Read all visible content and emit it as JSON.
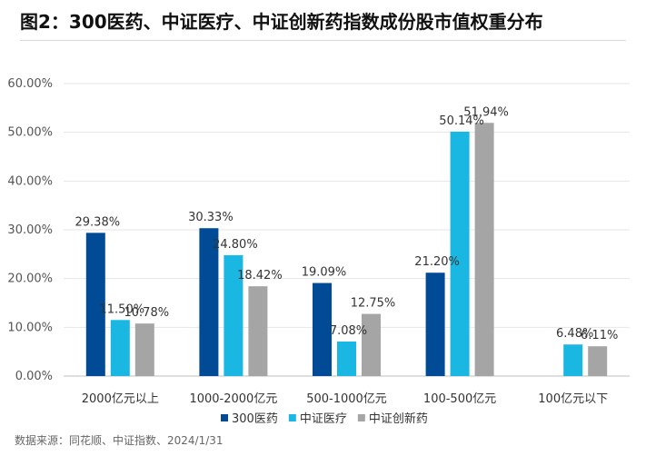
{
  "header": {
    "title": "图2：300医药、中证医疗、中证创新药指数成份股市值权重分布"
  },
  "footer": {
    "source": "数据来源：同花顺、中证指数、2024/1/31"
  },
  "chart_data": {
    "type": "bar",
    "title": "图2：300医药、中证医疗、中证创新药指数成份股市值权重分布",
    "xlabel": "",
    "ylabel": "",
    "categories": [
      "2000亿元以上",
      "1000-2000亿元",
      "500-1000亿元",
      "100-500亿元",
      "100亿元以下"
    ],
    "series": [
      {
        "name": "300医药",
        "color": "#004a96",
        "values": [
          29.38,
          30.33,
          19.09,
          21.2,
          null
        ],
        "labels": [
          "29.38%",
          "30.33%",
          "19.09%",
          "21.20%",
          ""
        ]
      },
      {
        "name": "中证医疗",
        "color": "#1ab7e3",
        "values": [
          11.5,
          24.8,
          7.08,
          50.14,
          6.48
        ],
        "labels": [
          "11.50%",
          "24.80%",
          "7.08%",
          "50.14%",
          "6.48%"
        ]
      },
      {
        "name": "中证创新药",
        "color": "#a5a5a5",
        "values": [
          10.78,
          18.42,
          12.75,
          51.94,
          6.11
        ],
        "labels": [
          "10.78%",
          "18.42%",
          "12.75%",
          "51.94%",
          "6.11%"
        ]
      }
    ],
    "ylim": [
      0,
      60
    ],
    "yticks": [
      0,
      10,
      20,
      30,
      40,
      50,
      60
    ],
    "ytick_labels": [
      "0.00%",
      "10.00%",
      "20.00%",
      "30.00%",
      "40.00%",
      "50.00%",
      "60.00%"
    ],
    "grid": true,
    "legend": "bottom"
  }
}
